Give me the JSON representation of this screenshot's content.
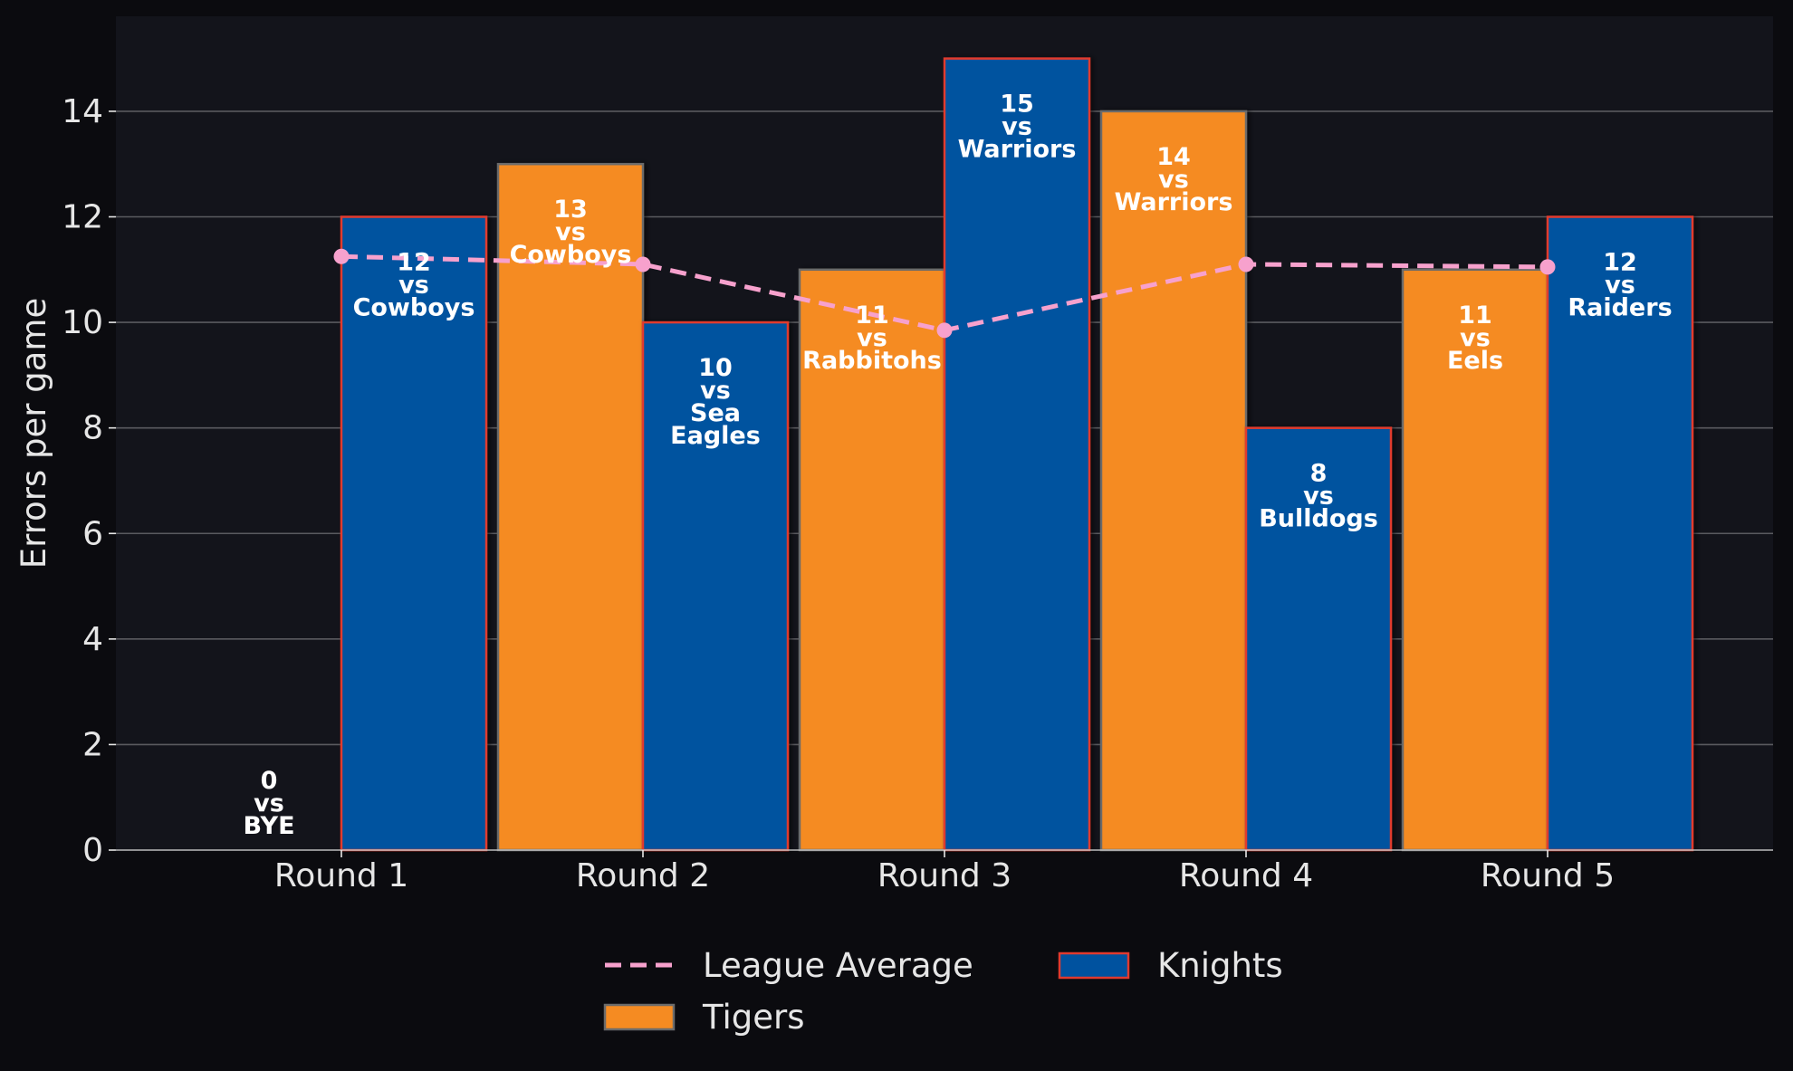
{
  "chart_data": {
    "type": "bar",
    "title": "",
    "xlabel": "",
    "ylabel": "Errors per game",
    "categories": [
      "Round 1",
      "Round 2",
      "Round 3",
      "Round 4",
      "Round 5"
    ],
    "ylim": [
      0,
      15.8
    ],
    "yticks": [
      0,
      2,
      4,
      6,
      8,
      10,
      12,
      14
    ],
    "grid": "horizontal",
    "legend_position": "bottom",
    "colors": {
      "background": "#0b0b0f",
      "plot_background": "#13141b",
      "grid": "#5a5a5f",
      "text": "#e6e6e6",
      "tigers": "#f58b22",
      "tigers_edge": "#6b6b6b",
      "knights": "#00529f",
      "knights_edge": "#e03a2f",
      "league_average": "#f7a1cd"
    },
    "series": [
      {
        "name": "Tigers",
        "kind": "bar",
        "values": [
          0,
          13,
          11,
          14,
          11
        ],
        "labels": [
          [
            "0",
            "vs",
            "BYE"
          ],
          [
            "13",
            "vs",
            "Cowboys"
          ],
          [
            "11",
            "vs",
            "Rabbitohs"
          ],
          [
            "14",
            "vs",
            "Warriors"
          ],
          [
            "11",
            "vs",
            "Eels"
          ]
        ]
      },
      {
        "name": "Knights",
        "kind": "bar",
        "values": [
          12,
          10,
          15,
          8,
          12
        ],
        "labels": [
          [
            "12",
            "vs",
            "Cowboys"
          ],
          [
            "10",
            "vs",
            "Sea",
            "Eagles"
          ],
          [
            "15",
            "vs",
            "Warriors"
          ],
          [
            "8",
            "vs",
            "Bulldogs"
          ],
          [
            "12",
            "vs",
            "Raiders"
          ]
        ]
      },
      {
        "name": "League Average",
        "kind": "line",
        "style": "dashed",
        "values": [
          11.25,
          11.1,
          9.85,
          11.1,
          11.05
        ]
      }
    ],
    "legend": [
      {
        "name": "League Average",
        "kind": "line"
      },
      {
        "name": "Knights",
        "kind": "bar"
      },
      {
        "name": "Tigers",
        "kind": "bar"
      }
    ]
  }
}
